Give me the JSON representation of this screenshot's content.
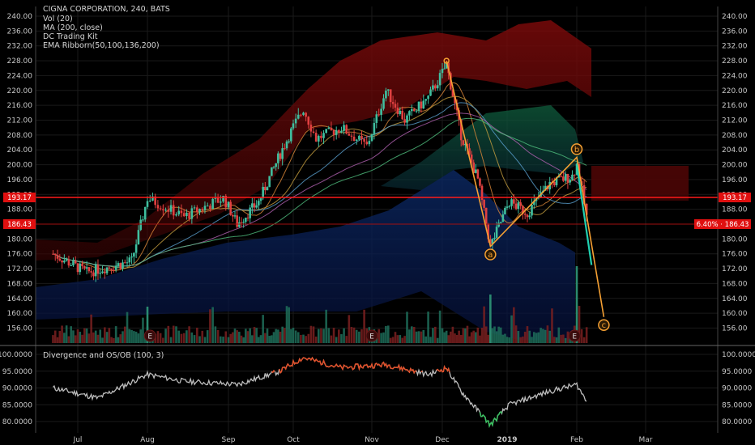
{
  "legend": {
    "title": "CIGNA CORPORATION, 240, BATS",
    "indicators": [
      "Vol (20)",
      "MA (200, close)",
      "DC Trading Kit",
      "EMA Ribborn(50,100,136,200)"
    ]
  },
  "oscillator": {
    "title": "Divergence and OS/OB (100, 3)"
  },
  "price_tags": {
    "resistance": "193.17",
    "current": "186.43",
    "current_right": "6.40% · 186.43"
  },
  "wave_labels": [
    "a",
    "b",
    "c"
  ],
  "earnings_label": "E",
  "colors": {
    "background": "#000000",
    "up": "#3fbf9f",
    "down": "#e04040",
    "resistance_line": "#ff1a1a",
    "wave": "#f5a033",
    "projection": "#20d0b0"
  },
  "chart_data": [
    {
      "type": "candlestick",
      "title": "CIGNA CORPORATION, 240, BATS",
      "x_ticks": [
        "Jul",
        "Aug",
        "Sep",
        "Oct",
        "Nov",
        "Dec",
        "2019",
        "Feb",
        "Mar"
      ],
      "y_ticks": [
        "240.00",
        "236.00",
        "232.00",
        "228.00",
        "224.00",
        "220.00",
        "216.00",
        "212.00",
        "208.00",
        "204.00",
        "200.00",
        "196.00",
        "192.00",
        "188.00",
        "184.00",
        "180.00",
        "176.00",
        "172.00",
        "168.00",
        "164.00",
        "160.00",
        "156.00"
      ],
      "ylim": [
        156,
        242
      ],
      "key_points": [
        {
          "x": "Jun 20",
          "close": 176
        },
        {
          "x": "Jul 05",
          "close": 171
        },
        {
          "x": "Jul 25",
          "close": 174
        },
        {
          "x": "Aug 01",
          "close": 191
        },
        {
          "x": "Aug 15",
          "close": 186
        },
        {
          "x": "Aug 30",
          "close": 191
        },
        {
          "x": "Sep 05",
          "close": 184
        },
        {
          "x": "Sep 15",
          "close": 190
        },
        {
          "x": "Sep 25",
          "close": 203
        },
        {
          "x": "Oct 05",
          "close": 215
        },
        {
          "x": "Oct 10",
          "close": 207
        },
        {
          "x": "Oct 20",
          "close": 210
        },
        {
          "x": "Oct 30",
          "close": 205
        },
        {
          "x": "Nov 07",
          "close": 220
        },
        {
          "x": "Nov 15",
          "close": 212
        },
        {
          "x": "Nov 25",
          "close": 218
        },
        {
          "x": "Dec 03",
          "close": 227
        },
        {
          "x": "Dec 10",
          "close": 208
        },
        {
          "x": "Dec 18",
          "close": 196
        },
        {
          "x": "Dec 24",
          "close": 178
        },
        {
          "x": "Jan 02",
          "close": 190
        },
        {
          "x": "Jan 10",
          "close": 187
        },
        {
          "x": "Jan 20",
          "close": 195
        },
        {
          "x": "Jan 30",
          "close": 197
        },
        {
          "x": "Feb 01",
          "close": 200
        },
        {
          "x": "Feb 05",
          "close": 186
        }
      ],
      "wave_points": [
        {
          "label": "",
          "x": "Dec 03",
          "y": 228
        },
        {
          "label": "a",
          "x": "Dec 24",
          "y": 178
        },
        {
          "label": "b",
          "x": "Feb 01",
          "y": 202
        },
        {
          "label": "c",
          "x": "Feb 12",
          "y": 159
        }
      ],
      "horizontal_levels": [
        193.17,
        186.43
      ]
    },
    {
      "type": "line",
      "title": "Divergence and OS/OB (100, 3)",
      "y_ticks": [
        "100.0000",
        "95.0000",
        "90.0000",
        "85.0000",
        "80.0000"
      ],
      "ylim": [
        77,
        101
      ],
      "key_points": [
        {
          "x": "Jun 20",
          "y": 90
        },
        {
          "x": "Jul 10",
          "y": 87
        },
        {
          "x": "Aug 01",
          "y": 94
        },
        {
          "x": "Aug 15",
          "y": 92
        },
        {
          "x": "Sep 05",
          "y": 91
        },
        {
          "x": "Sep 25",
          "y": 95
        },
        {
          "x": "Oct 05",
          "y": 99
        },
        {
          "x": "Oct 20",
          "y": 96
        },
        {
          "x": "Nov 07",
          "y": 97
        },
        {
          "x": "Nov 25",
          "y": 94
        },
        {
          "x": "Dec 03",
          "y": 96
        },
        {
          "x": "Dec 10",
          "y": 89
        },
        {
          "x": "Dec 24",
          "y": 79
        },
        {
          "x": "Jan 02",
          "y": 85
        },
        {
          "x": "Jan 20",
          "y": 89
        },
        {
          "x": "Feb 01",
          "y": 91
        },
        {
          "x": "Feb 05",
          "y": 86
        }
      ]
    }
  ]
}
